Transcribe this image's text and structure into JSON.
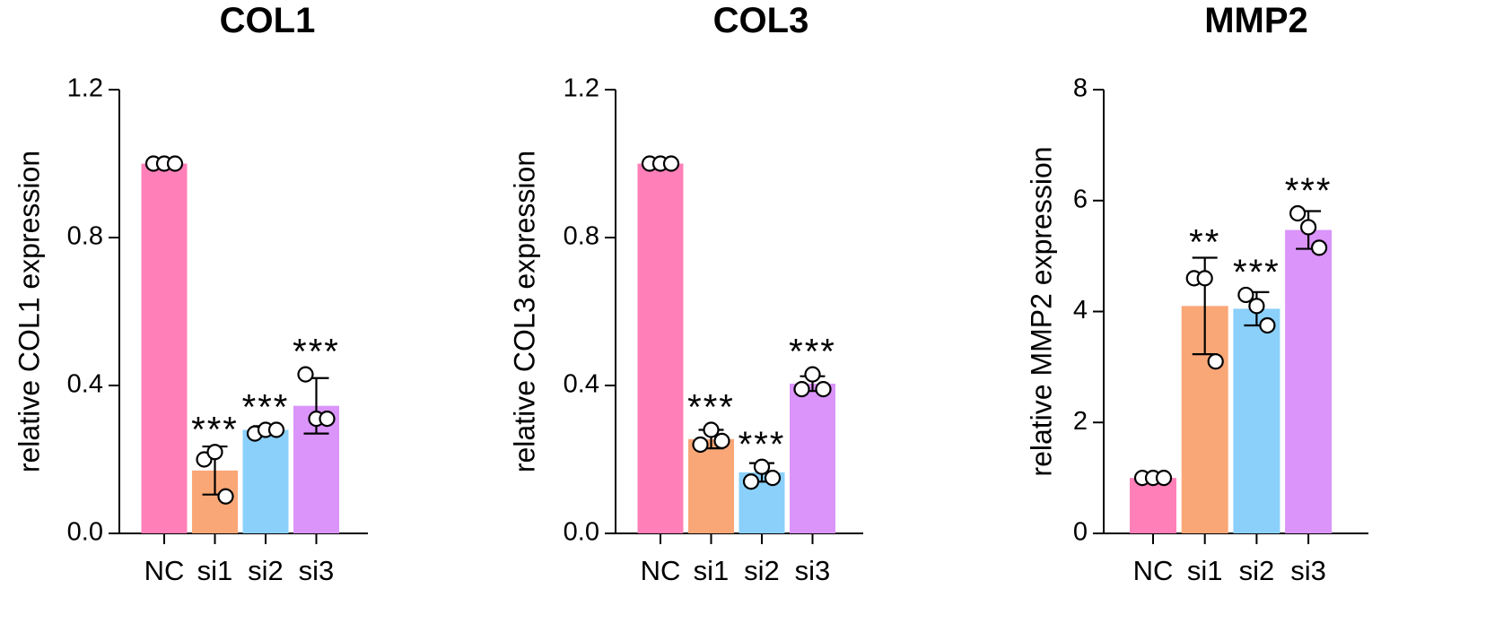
{
  "chart_data": [
    {
      "type": "bar",
      "title": "COL1",
      "ylabel": "relative COL1 expression",
      "xlabel": "",
      "ylim": [
        0,
        1.2
      ],
      "yticks": [
        "0.0",
        "0.4",
        "0.8",
        "1.2"
      ],
      "tick_values": [
        0,
        0.4,
        0.8,
        1.2
      ],
      "categories": [
        "NC",
        "si1",
        "si2",
        "si3"
      ],
      "colors": [
        "#ff80b8",
        "#faa777",
        "#8ad0fb",
        "#da94fa"
      ],
      "values": [
        1.0,
        0.17,
        0.28,
        0.345
      ],
      "sd": [
        0,
        0.065,
        0.01,
        0.075
      ],
      "points": [
        [
          1.0,
          1.0,
          1.0
        ],
        [
          0.2,
          0.22,
          0.1
        ],
        [
          0.27,
          0.28,
          0.28
        ],
        [
          0.43,
          0.31,
          0.31
        ]
      ],
      "significance": [
        "",
        "***",
        "***",
        "***"
      ]
    },
    {
      "type": "bar",
      "title": "COL3",
      "ylabel": "relative COL3 expression",
      "xlabel": "",
      "ylim": [
        0,
        1.2
      ],
      "yticks": [
        "0.0",
        "0.4",
        "0.8",
        "1.2"
      ],
      "tick_values": [
        0,
        0.4,
        0.8,
        1.2
      ],
      "categories": [
        "NC",
        "si1",
        "si2",
        "si3"
      ],
      "colors": [
        "#ff80b8",
        "#faa777",
        "#8ad0fb",
        "#da94fa"
      ],
      "values": [
        1.0,
        0.255,
        0.165,
        0.405
      ],
      "sd": [
        0,
        0.025,
        0.025,
        0.02
      ],
      "points": [
        [
          1.0,
          1.0,
          1.0
        ],
        [
          0.24,
          0.28,
          0.25
        ],
        [
          0.14,
          0.18,
          0.15
        ],
        [
          0.39,
          0.43,
          0.39
        ]
      ],
      "significance": [
        "",
        "***",
        "***",
        "***"
      ]
    },
    {
      "type": "bar",
      "title": "MMP2",
      "ylabel": "relative MMP2 expression",
      "xlabel": "",
      "ylim": [
        0,
        8
      ],
      "yticks": [
        "0",
        "2",
        "4",
        "6",
        "8"
      ],
      "tick_values": [
        0,
        2,
        4,
        6,
        8
      ],
      "categories": [
        "NC",
        "si1",
        "si2",
        "si3"
      ],
      "colors": [
        "#ff80b8",
        "#faa777",
        "#8ad0fb",
        "#da94fa"
      ],
      "values": [
        1.0,
        4.1,
        4.05,
        5.47
      ],
      "sd": [
        0,
        0.87,
        0.3,
        0.34
      ],
      "points": [
        [
          1.0,
          1.0,
          1.0
        ],
        [
          4.6,
          4.6,
          3.1
        ],
        [
          4.3,
          4.1,
          3.75
        ],
        [
          5.77,
          5.52,
          5.15
        ]
      ],
      "significance": [
        "",
        "**",
        "***",
        "***"
      ]
    }
  ]
}
